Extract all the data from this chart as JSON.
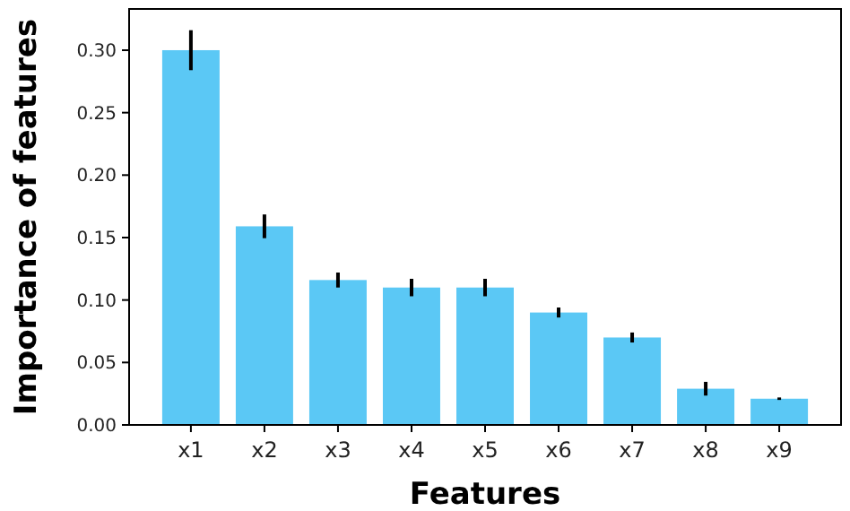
{
  "chart_data": {
    "type": "bar",
    "xlabel": "Features",
    "ylabel": "Importance of features",
    "categories": [
      "x1",
      "x2",
      "x3",
      "x4",
      "x5",
      "x6",
      "x7",
      "x8",
      "x9"
    ],
    "values": [
      0.3,
      0.159,
      0.116,
      0.11,
      0.11,
      0.09,
      0.07,
      0.029,
      0.021
    ],
    "errors": [
      0.016,
      0.0095,
      0.006,
      0.007,
      0.007,
      0.004,
      0.004,
      0.0055,
      0.001
    ],
    "color": "#5bc8f5",
    "ylim": [
      0,
      0.333
    ],
    "yticks": [
      {
        "value": 0,
        "label": "0.00"
      },
      {
        "value": 0.05,
        "label": "0.05"
      },
      {
        "value": 0.1,
        "label": "0.10"
      },
      {
        "value": 0.15,
        "label": "0.15"
      },
      {
        "value": 0.2,
        "label": "0.20"
      },
      {
        "value": 0.25,
        "label": "0.25"
      },
      {
        "value": 0.3,
        "label": "0.30"
      }
    ],
    "grid": false
  }
}
